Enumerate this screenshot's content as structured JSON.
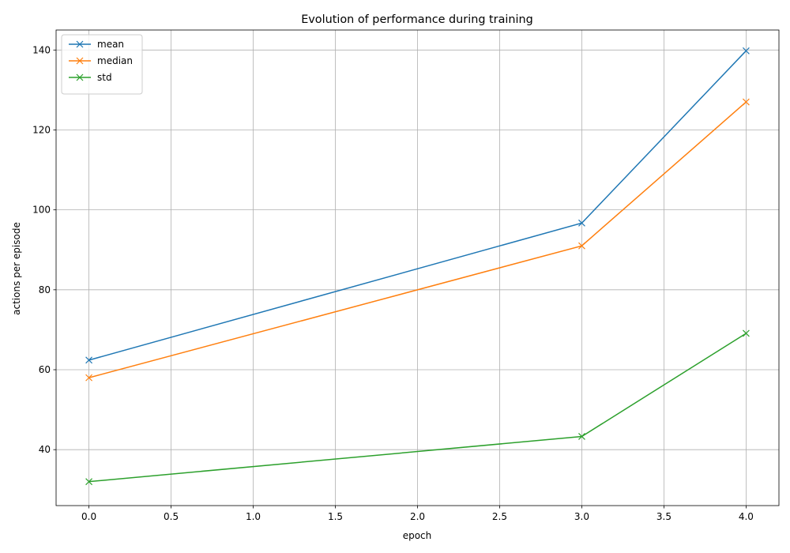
{
  "chart_data": {
    "type": "line",
    "title": "Evolution of performance during training",
    "xlabel": "epoch",
    "ylabel": "actions per episode",
    "xlim": [
      -0.2,
      4.2
    ],
    "ylim": [
      26,
      145
    ],
    "xticks": [
      0.0,
      0.5,
      1.0,
      1.5,
      2.0,
      2.5,
      3.0,
      3.5,
      4.0
    ],
    "xtick_labels": [
      "0.0",
      "0.5",
      "1.0",
      "1.5",
      "2.0",
      "2.5",
      "3.0",
      "3.5",
      "4.0"
    ],
    "yticks": [
      40,
      60,
      80,
      100,
      120,
      140
    ],
    "ytick_labels": [
      "40",
      "60",
      "80",
      "100",
      "120",
      "140"
    ],
    "grid": true,
    "legend_position": "top-left",
    "x": [
      0,
      3,
      4
    ],
    "series": [
      {
        "name": "mean",
        "color": "#1f77b4",
        "marker": "x",
        "values": [
          62.4,
          96.7,
          139.8
        ]
      },
      {
        "name": "median",
        "color": "#ff7f0e",
        "marker": "x",
        "values": [
          58.0,
          91.0,
          127.0
        ]
      },
      {
        "name": "std",
        "color": "#2ca02c",
        "marker": "x",
        "values": [
          32.0,
          43.3,
          69.1
        ]
      }
    ]
  }
}
